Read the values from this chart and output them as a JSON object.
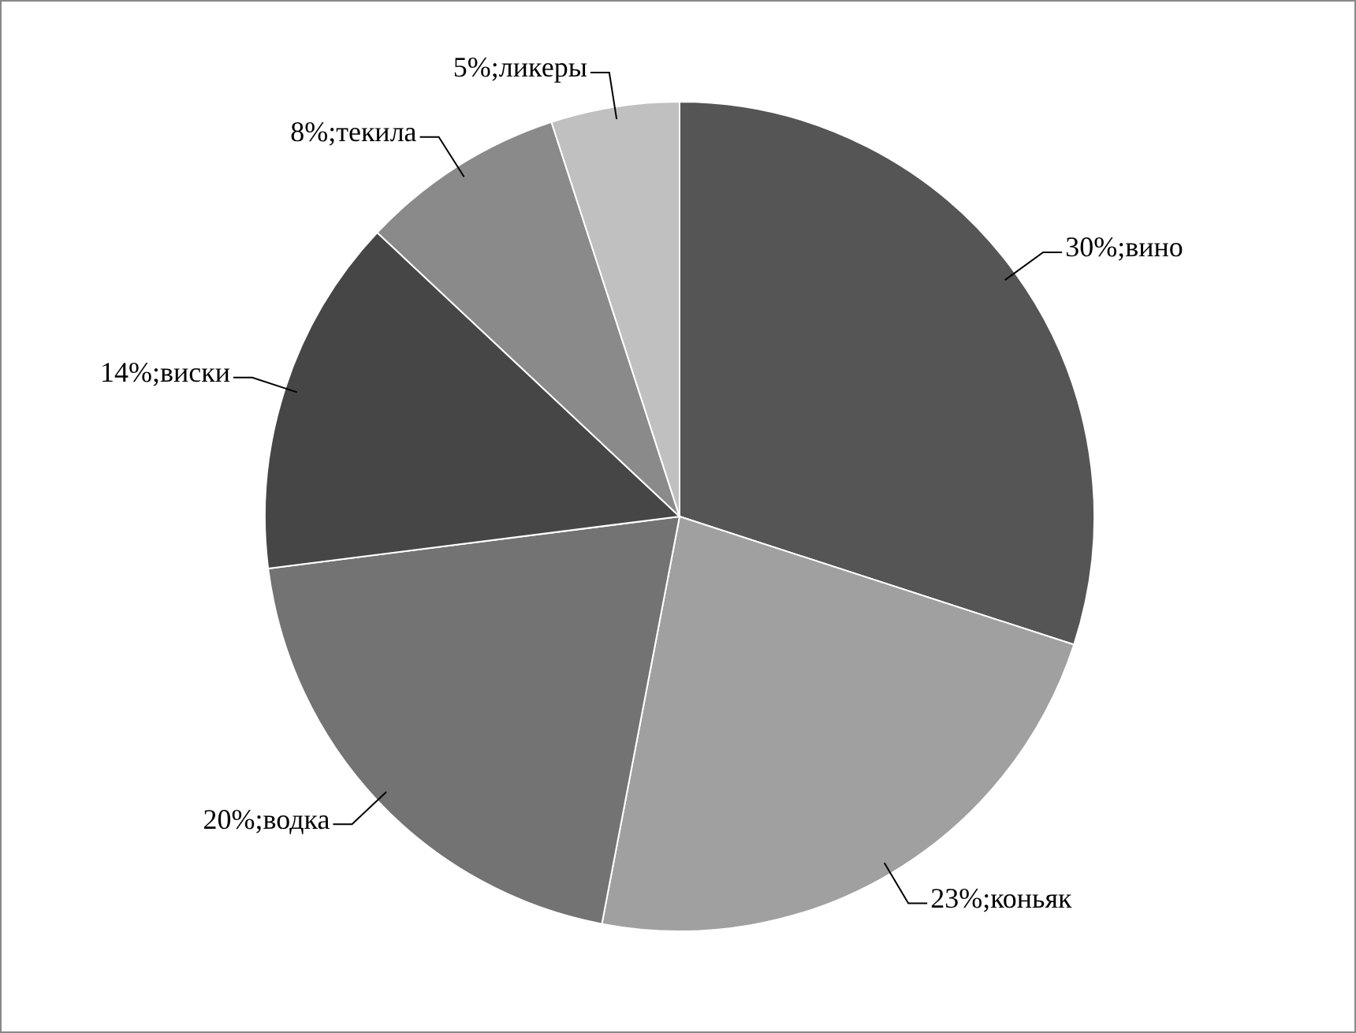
{
  "chart_data": {
    "type": "pie",
    "categories": [
      "вино",
      "коньяк",
      "водка",
      "виски",
      "текила",
      "ликеры"
    ],
    "values": [
      30,
      23,
      20,
      14,
      8,
      5
    ],
    "colors": [
      "#555555",
      "#a0a0a0",
      "#737373",
      "#464646",
      "#8a8a8a",
      "#c0c0c0"
    ],
    "value_labels": [
      "30%;",
      "23%;",
      "20%;",
      "14%;",
      "8%;",
      "5%;"
    ],
    "legend": false
  }
}
